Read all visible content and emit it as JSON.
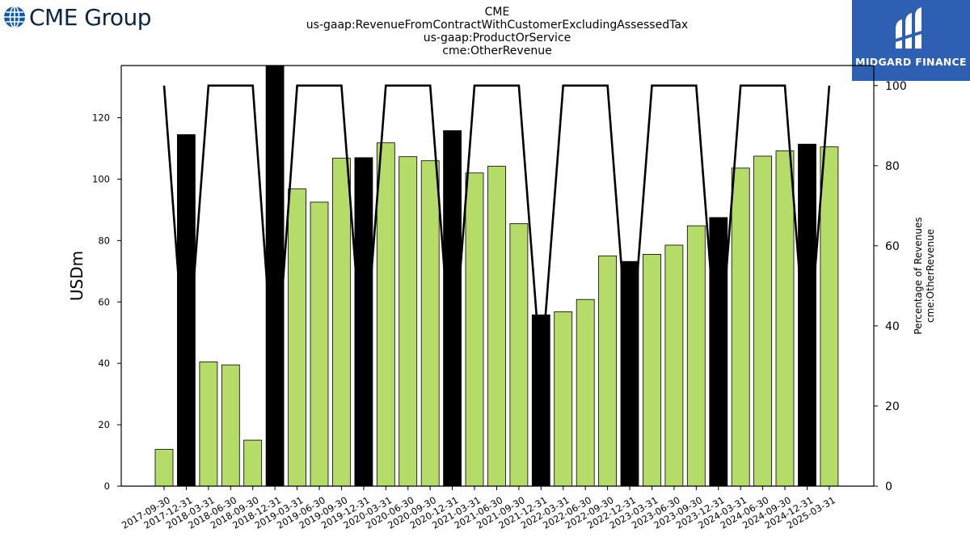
{
  "branding": {
    "left_logo_text": "CME Group",
    "left_logo_icon": "globe-icon",
    "right_logo_text": "MIDGARD FINANCE",
    "right_logo_icon": "midgard-mark-icon",
    "right_logo_bg": "#2d5fb3"
  },
  "header": {
    "line1": "CME",
    "line2": "us-gaap:RevenueFromContractWithCustomerExcludingAssessedTax",
    "line3": "us-gaap:ProductOrService",
    "line4": "cme:OtherRevenue"
  },
  "chart_data": {
    "type": "bar",
    "categories": [
      "2017-09-30",
      "2017-12-31",
      "2018-03-31",
      "2018-06-30",
      "2018-09-30",
      "2018-12-31",
      "2019-03-31",
      "2019-06-30",
      "2019-09-30",
      "2019-12-31",
      "2020-03-31",
      "2020-06-30",
      "2020-09-30",
      "2020-12-31",
      "2021-03-31",
      "2021-06-30",
      "2021-09-30",
      "2021-12-31",
      "2022-03-31",
      "2022-06-30",
      "2022-09-30",
      "2022-12-31",
      "2023-03-31",
      "2023-06-30",
      "2023-09-30",
      "2023-12-31",
      "2024-03-31",
      "2024-06-30",
      "2024-09-30",
      "2024-12-31",
      "2025-03-31"
    ],
    "series": [
      {
        "axis": "left",
        "values": [
          12,
          114.5,
          40.5,
          39.5,
          15,
          137,
          96.8,
          92.5,
          106.8,
          107,
          111.8,
          107.3,
          106,
          115.8,
          102,
          104.2,
          85.5,
          55.8,
          56.8,
          60.8,
          75,
          73.2,
          75.5,
          78.5,
          84.8,
          87.5,
          103.6,
          107.5,
          109.2,
          111.4,
          110.5
        ],
        "colors": [
          "#b5dc68",
          "#000000",
          "#b5dc68",
          "#b5dc68",
          "#b5dc68",
          "#000000",
          "#b5dc68",
          "#b5dc68",
          "#b5dc68",
          "#000000",
          "#b5dc68",
          "#b5dc68",
          "#b5dc68",
          "#000000",
          "#b5dc68",
          "#b5dc68",
          "#b5dc68",
          "#000000",
          "#b5dc68",
          "#b5dc68",
          "#b5dc68",
          "#000000",
          "#b5dc68",
          "#b5dc68",
          "#b5dc68",
          "#000000",
          "#b5dc68",
          "#b5dc68",
          "#b5dc68",
          "#000000",
          "#b5dc68"
        ]
      },
      {
        "axis": "right",
        "type": "line",
        "values": [
          100,
          26,
          100,
          100,
          100,
          23,
          100,
          100,
          100,
          28,
          100,
          100,
          100,
          28,
          100,
          100,
          100,
          28,
          100,
          100,
          100,
          28,
          100,
          100,
          100,
          28,
          100,
          100,
          100,
          28,
          100
        ]
      }
    ],
    "ylabel": "USDm",
    "y2label_line1": "Percentage of Revenues",
    "y2label_line2": "cme:OtherRevenue",
    "ylim": [
      0,
      137
    ],
    "y2lim": [
      0,
      105
    ],
    "yticks": [
      0,
      20,
      40,
      60,
      80,
      100,
      120
    ],
    "y2ticks": [
      0,
      20,
      40,
      60,
      80,
      100
    ],
    "bar_color_quarter": "#b5dc68",
    "bar_color_annual": "#000000",
    "line_color": "#000000",
    "grid": false,
    "legend": "none"
  }
}
